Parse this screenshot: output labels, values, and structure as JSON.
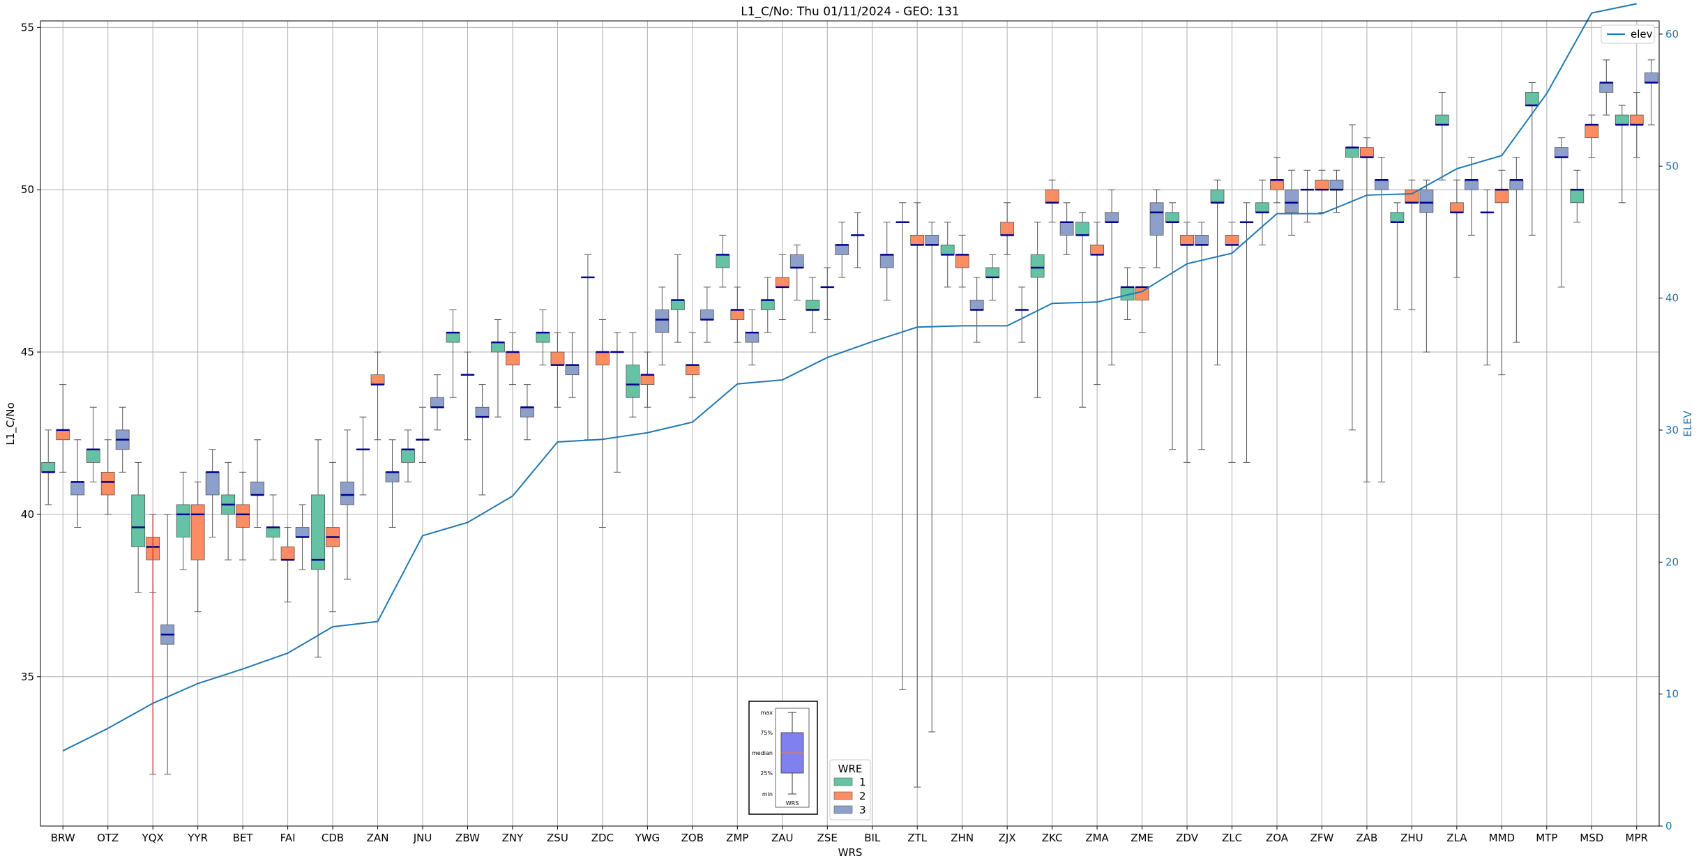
{
  "chart_data": {
    "type": "box",
    "title": "L1_C/No: Thu 01/11/2024 - GEO: 131",
    "xlabel": "WRS",
    "ylabel": "L1_C/No",
    "ylabel_right": "ELEV",
    "ylim": [
      30.4,
      55.2
    ],
    "ylim_right": [
      0,
      61
    ],
    "yticks": [
      35,
      40,
      45,
      50,
      55
    ],
    "yticks_right": [
      0,
      10,
      20,
      30,
      40,
      50,
      60
    ],
    "grid": true,
    "categories": [
      "BRW",
      "OTZ",
      "YQX",
      "YYR",
      "BET",
      "FAI",
      "CDB",
      "ZAN",
      "JNU",
      "ZBW",
      "ZNY",
      "ZSU",
      "ZDC",
      "YWG",
      "ZOB",
      "ZMP",
      "ZAU",
      "ZSE",
      "BIL",
      "ZTL",
      "ZHN",
      "ZJX",
      "ZKC",
      "ZMA",
      "ZME",
      "ZDV",
      "ZLC",
      "ZOA",
      "ZFW",
      "ZAB",
      "ZHU",
      "ZLA",
      "MMD",
      "MTP",
      "MSD",
      "MPR"
    ],
    "wre_legend": {
      "title": "WRE",
      "entries": [
        {
          "label": "1",
          "color": "#66c2a5"
        },
        {
          "label": "2",
          "color": "#fc8d62"
        },
        {
          "label": "3",
          "color": "#8da0cb"
        }
      ]
    },
    "elev_legend": {
      "label": "elev",
      "color": "#1f77b4"
    },
    "elevation": [
      5.7,
      7.4,
      9.3,
      10.8,
      11.9,
      13.1,
      15.1,
      15.5,
      22.0,
      23.0,
      25.0,
      29.1,
      29.3,
      29.8,
      30.6,
      33.5,
      33.8,
      35.5,
      36.7,
      37.8,
      37.9,
      37.9,
      39.6,
      39.7,
      40.5,
      42.6,
      43.4,
      46.4,
      46.4,
      47.8,
      47.9,
      49.8,
      50.8,
      55.5,
      61.6,
      62.3
    ],
    "inset_legend": {
      "labels": [
        "max",
        "75%",
        "median",
        "25%",
        "min"
      ],
      "xlabel": "WRS"
    },
    "boxes": [
      {
        "wrs": "BRW",
        "wre": 1,
        "min": 40.3,
        "q1": 41.3,
        "med": 41.3,
        "q3": 41.6,
        "max": 42.6
      },
      {
        "wrs": "BRW",
        "wre": 2,
        "min": 41.3,
        "q1": 42.3,
        "med": 42.6,
        "q3": 42.6,
        "max": 44.0
      },
      {
        "wrs": "BRW",
        "wre": 3,
        "min": 39.6,
        "q1": 40.6,
        "med": 41.0,
        "q3": 41.0,
        "max": 42.3
      },
      {
        "wrs": "OTZ",
        "wre": 1,
        "min": 41.0,
        "q1": 41.6,
        "med": 42.0,
        "q3": 42.0,
        "max": 43.3
      },
      {
        "wrs": "OTZ",
        "wre": 2,
        "min": 40.0,
        "q1": 40.6,
        "med": 41.0,
        "q3": 41.3,
        "max": 42.3
      },
      {
        "wrs": "OTZ",
        "wre": 3,
        "min": 41.3,
        "q1": 42.0,
        "med": 42.3,
        "q3": 42.6,
        "max": 43.3
      },
      {
        "wrs": "YQX",
        "wre": 1,
        "min": 37.6,
        "q1": 39.0,
        "med": 39.6,
        "q3": 40.6,
        "max": 41.6
      },
      {
        "wrs": "YQX",
        "wre": 2,
        "min": 37.6,
        "q1": 38.6,
        "med": 39.0,
        "q3": 39.3,
        "max": 40.0
      },
      {
        "wrs": "YQX",
        "wre": 3,
        "min": 32.0,
        "q1": 36.0,
        "med": 36.3,
        "q3": 36.6,
        "max": 40.0
      },
      {
        "wrs": "YYR",
        "wre": 1,
        "min": 38.3,
        "q1": 39.3,
        "med": 40.0,
        "q3": 40.3,
        "max": 41.3
      },
      {
        "wrs": "YYR",
        "wre": 2,
        "min": 37.0,
        "q1": 38.6,
        "med": 40.0,
        "q3": 40.3,
        "max": 41.0
      },
      {
        "wrs": "YYR",
        "wre": 3,
        "min": 39.3,
        "q1": 40.6,
        "med": 41.3,
        "q3": 41.3,
        "max": 42.0
      },
      {
        "wrs": "BET",
        "wre": 1,
        "min": 38.6,
        "q1": 40.0,
        "med": 40.3,
        "q3": 40.6,
        "max": 41.6
      },
      {
        "wrs": "BET",
        "wre": 2,
        "min": 38.6,
        "q1": 39.6,
        "med": 40.0,
        "q3": 40.3,
        "max": 41.3
      },
      {
        "wrs": "BET",
        "wre": 3,
        "min": 39.6,
        "q1": 40.6,
        "med": 40.6,
        "q3": 41.0,
        "max": 42.3
      },
      {
        "wrs": "FAI",
        "wre": 1,
        "min": 38.6,
        "q1": 39.3,
        "med": 39.6,
        "q3": 39.6,
        "max": 40.6
      },
      {
        "wrs": "FAI",
        "wre": 2,
        "min": 37.3,
        "q1": 38.6,
        "med": 38.6,
        "q3": 39.0,
        "max": 39.6
      },
      {
        "wrs": "FAI",
        "wre": 3,
        "min": 38.3,
        "q1": 39.3,
        "med": 39.3,
        "q3": 39.6,
        "max": 40.3
      },
      {
        "wrs": "CDB",
        "wre": 1,
        "min": 35.6,
        "q1": 38.3,
        "med": 38.6,
        "q3": 40.6,
        "max": 42.3
      },
      {
        "wrs": "CDB",
        "wre": 2,
        "min": 37.0,
        "q1": 39.0,
        "med": 39.3,
        "q3": 39.6,
        "max": 41.6
      },
      {
        "wrs": "CDB",
        "wre": 3,
        "min": 38.0,
        "q1": 40.3,
        "med": 40.6,
        "q3": 41.0,
        "max": 42.6
      },
      {
        "wrs": "ZAN",
        "wre": 1,
        "min": 40.6,
        "q1": 42.0,
        "med": 42.0,
        "q3": 42.0,
        "max": 43.0
      },
      {
        "wrs": "ZAN",
        "wre": 2,
        "min": 42.3,
        "q1": 44.0,
        "med": 44.0,
        "q3": 44.3,
        "max": 45.0
      },
      {
        "wrs": "ZAN",
        "wre": 3,
        "min": 39.6,
        "q1": 41.0,
        "med": 41.3,
        "q3": 41.3,
        "max": 42.3
      },
      {
        "wrs": "JNU",
        "wre": 1,
        "min": 41.0,
        "q1": 41.6,
        "med": 42.0,
        "q3": 42.0,
        "max": 42.6
      },
      {
        "wrs": "JNU",
        "wre": 2,
        "min": 41.6,
        "q1": 42.3,
        "med": 42.3,
        "q3": 42.3,
        "max": 43.3
      },
      {
        "wrs": "JNU",
        "wre": 3,
        "min": 42.6,
        "q1": 43.3,
        "med": 43.3,
        "q3": 43.6,
        "max": 44.3
      },
      {
        "wrs": "ZBW",
        "wre": 1,
        "min": 43.6,
        "q1": 45.3,
        "med": 45.6,
        "q3": 45.6,
        "max": 46.3
      },
      {
        "wrs": "ZBW",
        "wre": 2,
        "min": 42.3,
        "q1": 44.3,
        "med": 44.3,
        "q3": 44.3,
        "max": 45.0
      },
      {
        "wrs": "ZBW",
        "wre": 3,
        "min": 40.6,
        "q1": 43.0,
        "med": 43.0,
        "q3": 43.3,
        "max": 44.0
      },
      {
        "wrs": "ZNY",
        "wre": 1,
        "min": 43.0,
        "q1": 45.0,
        "med": 45.3,
        "q3": 45.3,
        "max": 46.0
      },
      {
        "wrs": "ZNY",
        "wre": 2,
        "min": 44.0,
        "q1": 44.6,
        "med": 45.0,
        "q3": 45.0,
        "max": 45.6
      },
      {
        "wrs": "ZNY",
        "wre": 3,
        "min": 42.3,
        "q1": 43.0,
        "med": 43.3,
        "q3": 43.3,
        "max": 44.0
      },
      {
        "wrs": "ZSU",
        "wre": 1,
        "min": 44.6,
        "q1": 45.3,
        "med": 45.6,
        "q3": 45.6,
        "max": 46.3
      },
      {
        "wrs": "ZSU",
        "wre": 2,
        "min": 43.3,
        "q1": 44.6,
        "med": 44.6,
        "q3": 45.0,
        "max": 45.6
      },
      {
        "wrs": "ZSU",
        "wre": 3,
        "min": 43.6,
        "q1": 44.3,
        "med": 44.6,
        "q3": 44.6,
        "max": 45.6
      },
      {
        "wrs": "ZDC",
        "wre": 1,
        "min": 42.3,
        "q1": 47.3,
        "med": 47.3,
        "q3": 47.3,
        "max": 48.0
      },
      {
        "wrs": "ZDC",
        "wre": 2,
        "min": 39.6,
        "q1": 44.6,
        "med": 45.0,
        "q3": 45.0,
        "max": 46.0
      },
      {
        "wrs": "ZDC",
        "wre": 3,
        "min": 41.3,
        "q1": 45.0,
        "med": 45.0,
        "q3": 45.0,
        "max": 45.6
      },
      {
        "wrs": "YWG",
        "wre": 1,
        "min": 43.0,
        "q1": 43.6,
        "med": 44.0,
        "q3": 44.6,
        "max": 45.6
      },
      {
        "wrs": "YWG",
        "wre": 2,
        "min": 43.3,
        "q1": 44.0,
        "med": 44.3,
        "q3": 44.3,
        "max": 45.0
      },
      {
        "wrs": "YWG",
        "wre": 3,
        "min": 44.6,
        "q1": 45.6,
        "med": 46.0,
        "q3": 46.3,
        "max": 47.0
      },
      {
        "wrs": "ZOB",
        "wre": 1,
        "min": 45.3,
        "q1": 46.3,
        "med": 46.6,
        "q3": 46.6,
        "max": 48.0
      },
      {
        "wrs": "ZOB",
        "wre": 2,
        "min": 43.6,
        "q1": 44.3,
        "med": 44.6,
        "q3": 44.6,
        "max": 45.6
      },
      {
        "wrs": "ZOB",
        "wre": 3,
        "min": 45.3,
        "q1": 46.0,
        "med": 46.0,
        "q3": 46.3,
        "max": 47.0
      },
      {
        "wrs": "ZMP",
        "wre": 1,
        "min": 47.0,
        "q1": 47.6,
        "med": 48.0,
        "q3": 48.0,
        "max": 48.6
      },
      {
        "wrs": "ZMP",
        "wre": 2,
        "min": 45.3,
        "q1": 46.0,
        "med": 46.3,
        "q3": 46.3,
        "max": 47.0
      },
      {
        "wrs": "ZMP",
        "wre": 3,
        "min": 44.6,
        "q1": 45.3,
        "med": 45.6,
        "q3": 45.6,
        "max": 46.3
      },
      {
        "wrs": "ZAU",
        "wre": 1,
        "min": 45.6,
        "q1": 46.3,
        "med": 46.6,
        "q3": 46.6,
        "max": 47.3
      },
      {
        "wrs": "ZAU",
        "wre": 2,
        "min": 46.0,
        "q1": 47.0,
        "med": 47.0,
        "q3": 47.3,
        "max": 48.0
      },
      {
        "wrs": "ZAU",
        "wre": 3,
        "min": 46.6,
        "q1": 47.6,
        "med": 47.6,
        "q3": 48.0,
        "max": 48.3
      },
      {
        "wrs": "ZSE",
        "wre": 1,
        "min": 45.6,
        "q1": 46.3,
        "med": 46.3,
        "q3": 46.6,
        "max": 47.3
      },
      {
        "wrs": "ZSE",
        "wre": 2,
        "min": 46.0,
        "q1": 47.0,
        "med": 47.0,
        "q3": 47.0,
        "max": 47.6
      },
      {
        "wrs": "ZSE",
        "wre": 3,
        "min": 47.3,
        "q1": 48.0,
        "med": 48.3,
        "q3": 48.3,
        "max": 49.0
      },
      {
        "wrs": "BIL",
        "wre": 1,
        "min": 47.6,
        "q1": 48.6,
        "med": 48.6,
        "q3": 48.6,
        "max": 49.3
      },
      {
        "wrs": "BIL",
        "wre": 3,
        "min": 46.6,
        "q1": 47.6,
        "med": 48.0,
        "q3": 48.0,
        "max": 49.0
      },
      {
        "wrs": "ZTL",
        "wre": 1,
        "min": 34.6,
        "q1": 49.0,
        "med": 49.0,
        "q3": 49.0,
        "max": 49.6
      },
      {
        "wrs": "ZTL",
        "wre": 2,
        "min": 31.6,
        "q1": 48.3,
        "med": 48.3,
        "q3": 48.6,
        "max": 49.6
      },
      {
        "wrs": "ZTL",
        "wre": 3,
        "min": 33.3,
        "q1": 48.3,
        "med": 48.3,
        "q3": 48.6,
        "max": 49.0
      },
      {
        "wrs": "ZHN",
        "wre": 1,
        "min": 47.0,
        "q1": 48.0,
        "med": 48.0,
        "q3": 48.3,
        "max": 49.0
      },
      {
        "wrs": "ZHN",
        "wre": 2,
        "min": 47.0,
        "q1": 47.6,
        "med": 48.0,
        "q3": 48.0,
        "max": 48.6
      },
      {
        "wrs": "ZHN",
        "wre": 3,
        "min": 45.3,
        "q1": 46.3,
        "med": 46.3,
        "q3": 46.6,
        "max": 47.3
      },
      {
        "wrs": "ZJX",
        "wre": 1,
        "min": 46.6,
        "q1": 47.3,
        "med": 47.3,
        "q3": 47.6,
        "max": 48.0
      },
      {
        "wrs": "ZJX",
        "wre": 2,
        "min": 48.0,
        "q1": 48.6,
        "med": 48.6,
        "q3": 49.0,
        "max": 49.6
      },
      {
        "wrs": "ZJX",
        "wre": 3,
        "min": 45.3,
        "q1": 46.3,
        "med": 46.3,
        "q3": 46.3,
        "max": 47.0
      },
      {
        "wrs": "ZKC",
        "wre": 1,
        "min": 43.6,
        "q1": 47.3,
        "med": 47.6,
        "q3": 48.0,
        "max": 49.0
      },
      {
        "wrs": "ZKC",
        "wre": 2,
        "min": 49.0,
        "q1": 49.6,
        "med": 49.6,
        "q3": 50.0,
        "max": 50.3
      },
      {
        "wrs": "ZKC",
        "wre": 3,
        "min": 48.0,
        "q1": 48.6,
        "med": 49.0,
        "q3": 49.0,
        "max": 49.6
      },
      {
        "wrs": "ZMA",
        "wre": 1,
        "min": 43.3,
        "q1": 48.6,
        "med": 48.6,
        "q3": 49.0,
        "max": 49.3
      },
      {
        "wrs": "ZMA",
        "wre": 2,
        "min": 44.0,
        "q1": 48.0,
        "med": 48.0,
        "q3": 48.3,
        "max": 49.0
      },
      {
        "wrs": "ZMA",
        "wre": 3,
        "min": 44.6,
        "q1": 49.0,
        "med": 49.0,
        "q3": 49.3,
        "max": 50.0
      },
      {
        "wrs": "ZME",
        "wre": 1,
        "min": 46.0,
        "q1": 46.6,
        "med": 47.0,
        "q3": 47.0,
        "max": 47.6
      },
      {
        "wrs": "ZME",
        "wre": 2,
        "min": 45.6,
        "q1": 46.6,
        "med": 47.0,
        "q3": 47.0,
        "max": 47.6
      },
      {
        "wrs": "ZME",
        "wre": 3,
        "min": 47.6,
        "q1": 48.6,
        "med": 49.3,
        "q3": 49.6,
        "max": 50.0
      },
      {
        "wrs": "ZDV",
        "wre": 1,
        "min": 42.0,
        "q1": 49.0,
        "med": 49.0,
        "q3": 49.3,
        "max": 49.6
      },
      {
        "wrs": "ZDV",
        "wre": 2,
        "min": 41.6,
        "q1": 48.3,
        "med": 48.3,
        "q3": 48.6,
        "max": 49.0
      },
      {
        "wrs": "ZDV",
        "wre": 3,
        "min": 42.0,
        "q1": 48.3,
        "med": 48.3,
        "q3": 48.6,
        "max": 49.0
      },
      {
        "wrs": "ZLC",
        "wre": 1,
        "min": 44.6,
        "q1": 49.6,
        "med": 49.6,
        "q3": 50.0,
        "max": 50.3
      },
      {
        "wrs": "ZLC",
        "wre": 2,
        "min": 41.6,
        "q1": 48.3,
        "med": 48.3,
        "q3": 48.6,
        "max": 49.0
      },
      {
        "wrs": "ZLC",
        "wre": 3,
        "min": 41.6,
        "q1": 49.0,
        "med": 49.0,
        "q3": 49.0,
        "max": 49.6
      },
      {
        "wrs": "ZOA",
        "wre": 1,
        "min": 48.3,
        "q1": 49.3,
        "med": 49.3,
        "q3": 49.6,
        "max": 50.3
      },
      {
        "wrs": "ZOA",
        "wre": 2,
        "min": 49.6,
        "q1": 50.0,
        "med": 50.3,
        "q3": 50.3,
        "max": 51.0
      },
      {
        "wrs": "ZOA",
        "wre": 3,
        "min": 48.6,
        "q1": 49.3,
        "med": 49.6,
        "q3": 50.0,
        "max": 50.6
      },
      {
        "wrs": "ZFW",
        "wre": 1,
        "min": 49.0,
        "q1": 50.0,
        "med": 50.0,
        "q3": 50.0,
        "max": 50.6
      },
      {
        "wrs": "ZFW",
        "wre": 2,
        "min": 49.3,
        "q1": 50.0,
        "med": 50.0,
        "q3": 50.3,
        "max": 50.6
      },
      {
        "wrs": "ZFW",
        "wre": 3,
        "min": 49.3,
        "q1": 50.0,
        "med": 50.0,
        "q3": 50.3,
        "max": 50.6
      },
      {
        "wrs": "ZAB",
        "wre": 1,
        "min": 42.6,
        "q1": 51.0,
        "med": 51.3,
        "q3": 51.3,
        "max": 52.0
      },
      {
        "wrs": "ZAB",
        "wre": 2,
        "min": 41.0,
        "q1": 51.0,
        "med": 51.0,
        "q3": 51.3,
        "max": 51.6
      },
      {
        "wrs": "ZAB",
        "wre": 3,
        "min": 41.0,
        "q1": 50.0,
        "med": 50.3,
        "q3": 50.3,
        "max": 51.0
      },
      {
        "wrs": "ZHU",
        "wre": 1,
        "min": 46.3,
        "q1": 49.0,
        "med": 49.0,
        "q3": 49.3,
        "max": 49.6
      },
      {
        "wrs": "ZHU",
        "wre": 2,
        "min": 46.3,
        "q1": 49.6,
        "med": 49.6,
        "q3": 50.0,
        "max": 50.3
      },
      {
        "wrs": "ZHU",
        "wre": 3,
        "min": 45.0,
        "q1": 49.3,
        "med": 49.6,
        "q3": 50.0,
        "max": 50.3
      },
      {
        "wrs": "ZLA",
        "wre": 1,
        "min": 50.3,
        "q1": 52.0,
        "med": 52.0,
        "q3": 52.3,
        "max": 53.0
      },
      {
        "wrs": "ZLA",
        "wre": 2,
        "min": 47.3,
        "q1": 49.3,
        "med": 49.3,
        "q3": 49.6,
        "max": 50.3
      },
      {
        "wrs": "ZLA",
        "wre": 3,
        "min": 48.6,
        "q1": 50.0,
        "med": 50.3,
        "q3": 50.3,
        "max": 51.0
      },
      {
        "wrs": "MMD",
        "wre": 1,
        "min": 44.6,
        "q1": 49.3,
        "med": 49.3,
        "q3": 49.3,
        "max": 50.0
      },
      {
        "wrs": "MMD",
        "wre": 2,
        "min": 44.3,
        "q1": 49.6,
        "med": 50.0,
        "q3": 50.0,
        "max": 50.6
      },
      {
        "wrs": "MMD",
        "wre": 3,
        "min": 45.3,
        "q1": 50.0,
        "med": 50.3,
        "q3": 50.3,
        "max": 51.0
      },
      {
        "wrs": "MTP",
        "wre": 1,
        "min": 48.6,
        "q1": 52.6,
        "med": 52.6,
        "q3": 53.0,
        "max": 53.3
      },
      {
        "wrs": "MTP",
        "wre": 3,
        "min": 47.0,
        "q1": 51.0,
        "med": 51.0,
        "q3": 51.3,
        "max": 51.6
      },
      {
        "wrs": "MSD",
        "wre": 1,
        "min": 49.0,
        "q1": 49.6,
        "med": 50.0,
        "q3": 50.0,
        "max": 50.6
      },
      {
        "wrs": "MSD",
        "wre": 2,
        "min": 51.0,
        "q1": 51.6,
        "med": 52.0,
        "q3": 52.0,
        "max": 52.3
      },
      {
        "wrs": "MSD",
        "wre": 3,
        "min": 52.3,
        "q1": 53.0,
        "med": 53.3,
        "q3": 53.3,
        "max": 54.0
      },
      {
        "wrs": "MPR",
        "wre": 1,
        "min": 49.6,
        "q1": 52.0,
        "med": 52.0,
        "q3": 52.3,
        "max": 52.6
      },
      {
        "wrs": "MPR",
        "wre": 2,
        "min": 51.0,
        "q1": 52.0,
        "med": 52.0,
        "q3": 52.3,
        "max": 53.0
      },
      {
        "wrs": "MPR",
        "wre": 3,
        "min": 52.0,
        "q1": 53.3,
        "med": 53.3,
        "q3": 53.6,
        "max": 54.0
      }
    ],
    "outlier_whiskers": [
      {
        "wrs": "YQX",
        "wre": 2,
        "low": 32.0,
        "high": 40.0,
        "color": "#d62728"
      }
    ]
  }
}
